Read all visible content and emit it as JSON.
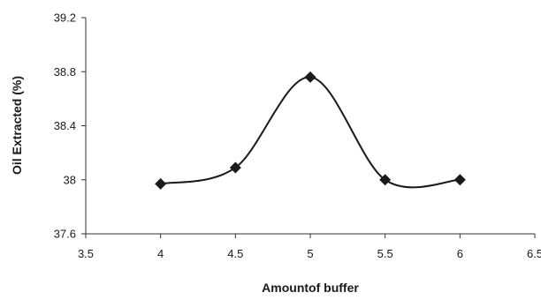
{
  "chart_data": {
    "type": "scatter",
    "title": "",
    "xlabel": "Amountof buffer",
    "ylabel": "Oil Extracted (%)",
    "xlim": [
      3.5,
      6.5
    ],
    "ylim": [
      37.6,
      39.2
    ],
    "xticks": [
      "3.5",
      "4",
      "4.5",
      "5",
      "5.5",
      "6",
      "6.5"
    ],
    "yticks": [
      "37.6",
      "38",
      "38.4",
      "38.8",
      "39.2"
    ],
    "line_style": "smoothed",
    "marker": "diamond",
    "grid": false,
    "legend": "none",
    "color": "#1a1a1a",
    "series": [
      {
        "x": [
          4,
          4.5,
          5,
          5.5,
          6
        ],
        "y": [
          37.97,
          38.09,
          38.76,
          38.0,
          38.0
        ]
      }
    ]
  }
}
